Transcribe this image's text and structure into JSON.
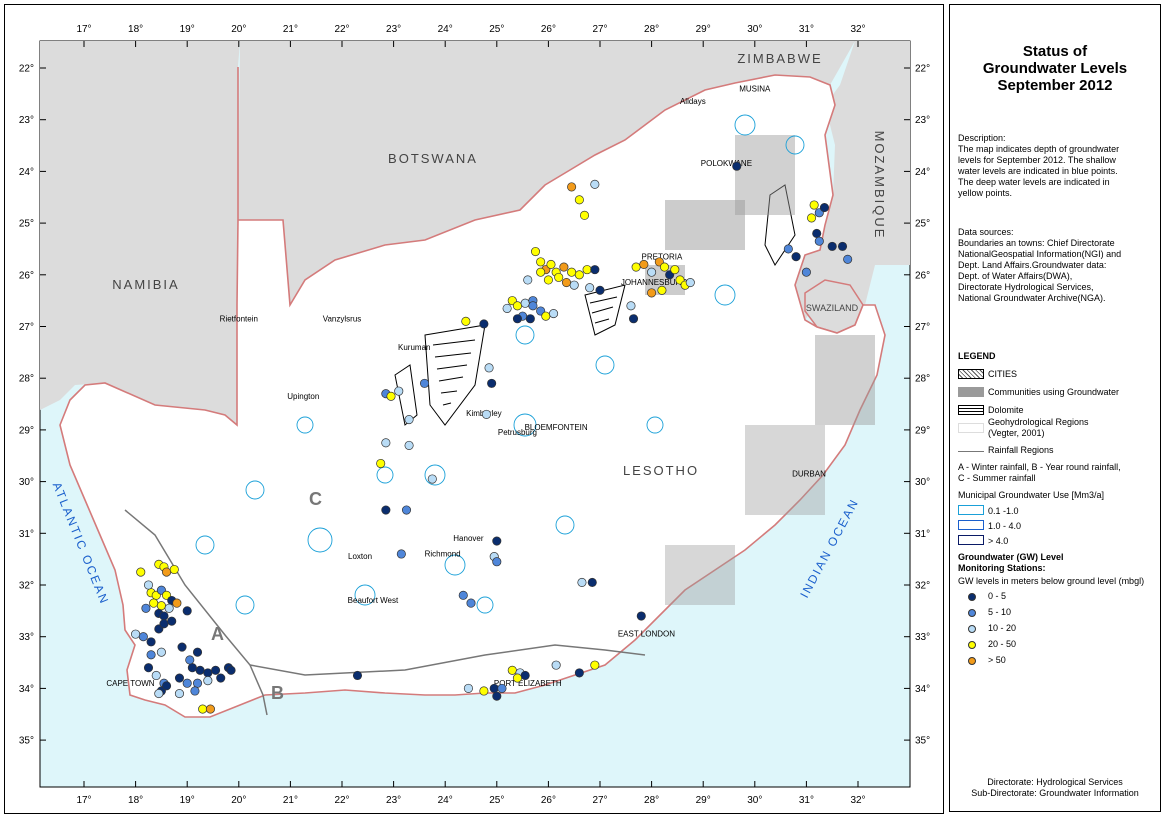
{
  "map": {
    "top_lon_ticks": [
      "17°",
      "18°",
      "19°",
      "20°",
      "21°",
      "22°",
      "23°",
      "24°",
      "25°",
      "26°",
      "27°",
      "28°",
      "29°",
      "30°",
      "31°",
      "32°"
    ],
    "bottom_lon_ticks": [
      "17°",
      "18°",
      "19°",
      "20°",
      "21°",
      "22°",
      "23°",
      "24°",
      "25°",
      "26°",
      "27°",
      "28°",
      "29°",
      "30°",
      "31°",
      "32°"
    ],
    "left_lat_ticks": [
      "22°",
      "23°",
      "24°",
      "25°",
      "26°",
      "27°",
      "28°",
      "29°",
      "30°",
      "31°",
      "32°",
      "33°",
      "34°",
      "35°"
    ],
    "right_lat_ticks": [
      "22°",
      "23°",
      "24°",
      "25°",
      "26°",
      "27°",
      "28°",
      "29°",
      "30°",
      "31°",
      "32°",
      "33°",
      "34°",
      "35°"
    ],
    "countries": {
      "botswana": "BOTSWANA",
      "namibia": "NAMIBIA",
      "zimbabwe": "ZIMBABWE",
      "mozambique": "MOZAMBIQUE",
      "lesotho": "LESOTHO",
      "swaziland": "SWAZILAND"
    },
    "oceans": {
      "atlantic": "ATLANTIC OCEAN",
      "indian": "INDIAN OCEAN"
    },
    "regions": {
      "a": "A",
      "b": "B",
      "c": "C"
    },
    "towns": [
      {
        "name": "Alldays",
        "lon": 28.8,
        "lat": -22.7,
        "bold": false
      },
      {
        "name": "MUSINA",
        "lon": 30.0,
        "lat": -22.45,
        "bold": false
      },
      {
        "name": "POLOKWANE",
        "lon": 29.45,
        "lat": -23.9,
        "bold": false
      },
      {
        "name": "PRETORIA",
        "lon": 28.2,
        "lat": -25.7,
        "bold": false
      },
      {
        "name": "JOHANNESBURG",
        "lon": 28.05,
        "lat": -26.2,
        "bold": false
      },
      {
        "name": "Rietfontein",
        "lon": 20.0,
        "lat": -26.9,
        "bold": false
      },
      {
        "name": "Vanzylsrus",
        "lon": 22.0,
        "lat": -26.9,
        "bold": false
      },
      {
        "name": "Kuruman",
        "lon": 23.4,
        "lat": -27.45,
        "bold": false
      },
      {
        "name": "Upington",
        "lon": 21.25,
        "lat": -28.4,
        "bold": false
      },
      {
        "name": "Kimberley",
        "lon": 24.75,
        "lat": -28.73,
        "bold": false
      },
      {
        "name": "Petrusburg",
        "lon": 25.4,
        "lat": -29.1,
        "bold": false
      },
      {
        "name": "BLOEMFONTEIN",
        "lon": 26.15,
        "lat": -29.0,
        "bold": false
      },
      {
        "name": "DURBAN",
        "lon": 31.05,
        "lat": -29.9,
        "bold": false
      },
      {
        "name": "Hanover",
        "lon": 24.45,
        "lat": -31.15,
        "bold": false
      },
      {
        "name": "Loxton",
        "lon": 22.35,
        "lat": -31.5,
        "bold": false
      },
      {
        "name": "Richmond",
        "lon": 23.95,
        "lat": -31.45,
        "bold": false
      },
      {
        "name": "Beaufort West",
        "lon": 22.6,
        "lat": -32.35,
        "bold": false
      },
      {
        "name": "EAST LONDON",
        "lon": 27.9,
        "lat": -33.0,
        "bold": false
      },
      {
        "name": "CAPE TOWN",
        "lon": 17.9,
        "lat": -33.95,
        "bold": false
      },
      {
        "name": "PORT ELIZABETH",
        "lon": 25.6,
        "lat": -33.95,
        "bold": false
      }
    ],
    "station_colors": {
      "c0_5": "#0a2d6e",
      "c5_10": "#4f86d9",
      "c10_20": "#b9dcf6",
      "c20_50": "#ffff00",
      "c50": "#f29b1a"
    },
    "stations": [
      {
        "lon": 26.45,
        "lat": -24.3,
        "c": "c50"
      },
      {
        "lon": 26.6,
        "lat": -24.55,
        "c": "c20_50"
      },
      {
        "lon": 26.9,
        "lat": -24.25,
        "c": "c10_20"
      },
      {
        "lon": 26.7,
        "lat": -24.85,
        "c": "c20_50"
      },
      {
        "lon": 25.75,
        "lat": -25.55,
        "c": "c20_50"
      },
      {
        "lon": 25.85,
        "lat": -25.75,
        "c": "c20_50"
      },
      {
        "lon": 25.95,
        "lat": -25.9,
        "c": "c50"
      },
      {
        "lon": 26.05,
        "lat": -25.8,
        "c": "c20_50"
      },
      {
        "lon": 26.15,
        "lat": -25.95,
        "c": "c20_50"
      },
      {
        "lon": 26.3,
        "lat": -25.85,
        "c": "c50"
      },
      {
        "lon": 26.45,
        "lat": -25.95,
        "c": "c20_50"
      },
      {
        "lon": 26.6,
        "lat": -26.0,
        "c": "c20_50"
      },
      {
        "lon": 26.75,
        "lat": -25.9,
        "c": "c20_50"
      },
      {
        "lon": 25.85,
        "lat": -25.95,
        "c": "c20_50"
      },
      {
        "lon": 26.0,
        "lat": -26.1,
        "c": "c20_50"
      },
      {
        "lon": 26.2,
        "lat": -26.05,
        "c": "c20_50"
      },
      {
        "lon": 26.5,
        "lat": -26.2,
        "c": "c10_20"
      },
      {
        "lon": 26.9,
        "lat": -25.9,
        "c": "c0_5"
      },
      {
        "lon": 26.35,
        "lat": -26.15,
        "c": "c50"
      },
      {
        "lon": 25.6,
        "lat": -26.1,
        "c": "c10_20"
      },
      {
        "lon": 26.8,
        "lat": -26.25,
        "c": "c10_20"
      },
      {
        "lon": 27.0,
        "lat": -26.3,
        "c": "c0_5"
      },
      {
        "lon": 25.3,
        "lat": -26.5,
        "c": "c20_50"
      },
      {
        "lon": 25.4,
        "lat": -26.6,
        "c": "c20_50"
      },
      {
        "lon": 25.55,
        "lat": -26.55,
        "c": "c10_20"
      },
      {
        "lon": 25.7,
        "lat": -26.5,
        "c": "c5_10"
      },
      {
        "lon": 25.85,
        "lat": -26.7,
        "c": "c5_10"
      },
      {
        "lon": 25.5,
        "lat": -26.8,
        "c": "c5_10"
      },
      {
        "lon": 25.65,
        "lat": -26.85,
        "c": "c0_5"
      },
      {
        "lon": 25.95,
        "lat": -26.8,
        "c": "c20_50"
      },
      {
        "lon": 26.1,
        "lat": -26.75,
        "c": "c10_20"
      },
      {
        "lon": 25.4,
        "lat": -26.85,
        "c": "c0_5"
      },
      {
        "lon": 25.7,
        "lat": -26.6,
        "c": "c5_10"
      },
      {
        "lon": 25.2,
        "lat": -26.65,
        "c": "c10_20"
      },
      {
        "lon": 24.4,
        "lat": -26.9,
        "c": "c20_50"
      },
      {
        "lon": 24.75,
        "lat": -26.95,
        "c": "c0_5"
      },
      {
        "lon": 27.7,
        "lat": -25.85,
        "c": "c20_50"
      },
      {
        "lon": 27.85,
        "lat": -25.8,
        "c": "c50"
      },
      {
        "lon": 28.0,
        "lat": -25.95,
        "c": "c10_20"
      },
      {
        "lon": 28.15,
        "lat": -25.75,
        "c": "c50"
      },
      {
        "lon": 28.25,
        "lat": -25.85,
        "c": "c20_50"
      },
      {
        "lon": 28.35,
        "lat": -26.0,
        "c": "c0_5"
      },
      {
        "lon": 28.45,
        "lat": -25.9,
        "c": "c20_50"
      },
      {
        "lon": 28.55,
        "lat": -26.1,
        "c": "c20_50"
      },
      {
        "lon": 28.65,
        "lat": -26.2,
        "c": "c20_50"
      },
      {
        "lon": 28.75,
        "lat": -26.15,
        "c": "c10_20"
      },
      {
        "lon": 28.0,
        "lat": -26.35,
        "c": "c50"
      },
      {
        "lon": 28.2,
        "lat": -26.3,
        "c": "c20_50"
      },
      {
        "lon": 27.6,
        "lat": -26.6,
        "c": "c10_20"
      },
      {
        "lon": 27.65,
        "lat": -26.85,
        "c": "c0_5"
      },
      {
        "lon": 29.65,
        "lat": -23.9,
        "c": "c0_5"
      },
      {
        "lon": 30.65,
        "lat": -25.5,
        "c": "c5_10"
      },
      {
        "lon": 30.8,
        "lat": -25.65,
        "c": "c0_5"
      },
      {
        "lon": 31.0,
        "lat": -25.95,
        "c": "c5_10"
      },
      {
        "lon": 31.15,
        "lat": -24.65,
        "c": "c20_50"
      },
      {
        "lon": 31.25,
        "lat": -24.8,
        "c": "c5_10"
      },
      {
        "lon": 31.35,
        "lat": -24.7,
        "c": "c0_5"
      },
      {
        "lon": 31.1,
        "lat": -24.9,
        "c": "c20_50"
      },
      {
        "lon": 31.2,
        "lat": -25.2,
        "c": "c0_5"
      },
      {
        "lon": 31.25,
        "lat": -25.35,
        "c": "c5_10"
      },
      {
        "lon": 31.5,
        "lat": -25.45,
        "c": "c0_5"
      },
      {
        "lon": 31.7,
        "lat": -25.45,
        "c": "c0_5"
      },
      {
        "lon": 31.8,
        "lat": -25.7,
        "c": "c5_10"
      },
      {
        "lon": 22.85,
        "lat": -28.3,
        "c": "c5_10"
      },
      {
        "lon": 22.95,
        "lat": -28.35,
        "c": "c20_50"
      },
      {
        "lon": 23.1,
        "lat": -28.25,
        "c": "c10_20"
      },
      {
        "lon": 23.6,
        "lat": -28.1,
        "c": "c5_10"
      },
      {
        "lon": 23.3,
        "lat": -28.8,
        "c": "c10_20"
      },
      {
        "lon": 24.85,
        "lat": -27.8,
        "c": "c10_20"
      },
      {
        "lon": 24.9,
        "lat": -28.1,
        "c": "c0_5"
      },
      {
        "lon": 24.8,
        "lat": -28.7,
        "c": "c10_20"
      },
      {
        "lon": 23.3,
        "lat": -29.3,
        "c": "c10_20"
      },
      {
        "lon": 22.85,
        "lat": -29.25,
        "c": "c10_20"
      },
      {
        "lon": 22.75,
        "lat": -29.65,
        "c": "c20_50"
      },
      {
        "lon": 23.75,
        "lat": -29.95,
        "c": "c10_20"
      },
      {
        "lon": 22.85,
        "lat": -30.55,
        "c": "c0_5"
      },
      {
        "lon": 23.25,
        "lat": -30.55,
        "c": "c5_10"
      },
      {
        "lon": 25.0,
        "lat": -31.15,
        "c": "c0_5"
      },
      {
        "lon": 24.95,
        "lat": -31.45,
        "c": "c10_20"
      },
      {
        "lon": 25.0,
        "lat": -31.55,
        "c": "c5_10"
      },
      {
        "lon": 23.15,
        "lat": -31.4,
        "c": "c5_10"
      },
      {
        "lon": 24.35,
        "lat": -32.2,
        "c": "c5_10"
      },
      {
        "lon": 24.5,
        "lat": -32.35,
        "c": "c5_10"
      },
      {
        "lon": 26.65,
        "lat": -31.95,
        "c": "c10_20"
      },
      {
        "lon": 26.85,
        "lat": -31.95,
        "c": "c0_5"
      },
      {
        "lon": 27.8,
        "lat": -32.6,
        "c": "c0_5"
      },
      {
        "lon": 18.45,
        "lat": -31.6,
        "c": "c20_50"
      },
      {
        "lon": 18.55,
        "lat": -31.65,
        "c": "c20_50"
      },
      {
        "lon": 18.6,
        "lat": -31.75,
        "c": "c50"
      },
      {
        "lon": 18.75,
        "lat": -31.7,
        "c": "c20_50"
      },
      {
        "lon": 18.3,
        "lat": -32.15,
        "c": "c20_50"
      },
      {
        "lon": 18.4,
        "lat": -32.2,
        "c": "c20_50"
      },
      {
        "lon": 18.5,
        "lat": -32.1,
        "c": "c5_10"
      },
      {
        "lon": 18.6,
        "lat": -32.2,
        "c": "c20_50"
      },
      {
        "lon": 18.7,
        "lat": -32.3,
        "c": "c0_5"
      },
      {
        "lon": 18.35,
        "lat": -32.35,
        "c": "c20_50"
      },
      {
        "lon": 18.5,
        "lat": -32.4,
        "c": "c20_50"
      },
      {
        "lon": 18.65,
        "lat": -32.45,
        "c": "c10_20"
      },
      {
        "lon": 18.2,
        "lat": -32.45,
        "c": "c5_10"
      },
      {
        "lon": 18.8,
        "lat": -32.35,
        "c": "c50"
      },
      {
        "lon": 18.45,
        "lat": -32.55,
        "c": "c0_5"
      },
      {
        "lon": 18.1,
        "lat": -31.75,
        "c": "c20_50"
      },
      {
        "lon": 18.25,
        "lat": -32.0,
        "c": "c10_20"
      },
      {
        "lon": 18.55,
        "lat": -32.6,
        "c": "c0_5"
      },
      {
        "lon": 18.0,
        "lat": -32.95,
        "c": "c10_20"
      },
      {
        "lon": 18.15,
        "lat": -33.0,
        "c": "c5_10"
      },
      {
        "lon": 18.3,
        "lat": -33.1,
        "c": "c0_5"
      },
      {
        "lon": 18.45,
        "lat": -32.85,
        "c": "c0_5"
      },
      {
        "lon": 18.55,
        "lat": -32.75,
        "c": "c0_5"
      },
      {
        "lon": 18.7,
        "lat": -32.7,
        "c": "c0_5"
      },
      {
        "lon": 18.3,
        "lat": -33.35,
        "c": "c5_10"
      },
      {
        "lon": 18.5,
        "lat": -33.3,
        "c": "c10_20"
      },
      {
        "lon": 19.0,
        "lat": -32.5,
        "c": "c0_5"
      },
      {
        "lon": 18.25,
        "lat": -33.6,
        "c": "c0_5"
      },
      {
        "lon": 18.4,
        "lat": -33.75,
        "c": "c10_20"
      },
      {
        "lon": 18.55,
        "lat": -33.9,
        "c": "c5_10"
      },
      {
        "lon": 18.5,
        "lat": -34.05,
        "c": "c0_5"
      },
      {
        "lon": 18.6,
        "lat": -33.95,
        "c": "c0_5"
      },
      {
        "lon": 18.45,
        "lat": -34.1,
        "c": "c10_20"
      },
      {
        "lon": 18.85,
        "lat": -33.8,
        "c": "c0_5"
      },
      {
        "lon": 19.0,
        "lat": -33.9,
        "c": "c5_10"
      },
      {
        "lon": 19.1,
        "lat": -33.6,
        "c": "c0_5"
      },
      {
        "lon": 19.25,
        "lat": -33.65,
        "c": "c0_5"
      },
      {
        "lon": 19.4,
        "lat": -33.7,
        "c": "c0_5"
      },
      {
        "lon": 19.55,
        "lat": -33.65,
        "c": "c0_5"
      },
      {
        "lon": 19.2,
        "lat": -33.9,
        "c": "c5_10"
      },
      {
        "lon": 19.4,
        "lat": -33.85,
        "c": "c10_20"
      },
      {
        "lon": 19.65,
        "lat": -33.8,
        "c": "c0_5"
      },
      {
        "lon": 19.8,
        "lat": -33.6,
        "c": "c0_5"
      },
      {
        "lon": 19.85,
        "lat": -33.65,
        "c": "c0_5"
      },
      {
        "lon": 18.9,
        "lat": -33.2,
        "c": "c0_5"
      },
      {
        "lon": 19.2,
        "lat": -33.3,
        "c": "c0_5"
      },
      {
        "lon": 19.05,
        "lat": -33.45,
        "c": "c5_10"
      },
      {
        "lon": 19.3,
        "lat": -34.4,
        "c": "c20_50"
      },
      {
        "lon": 19.45,
        "lat": -34.4,
        "c": "c50"
      },
      {
        "lon": 18.85,
        "lat": -34.1,
        "c": "c10_20"
      },
      {
        "lon": 19.15,
        "lat": -34.05,
        "c": "c5_10"
      },
      {
        "lon": 22.3,
        "lat": -33.75,
        "c": "c0_5"
      },
      {
        "lon": 24.45,
        "lat": -34.0,
        "c": "c10_20"
      },
      {
        "lon": 24.75,
        "lat": -34.05,
        "c": "c20_50"
      },
      {
        "lon": 24.95,
        "lat": -34.0,
        "c": "c0_5"
      },
      {
        "lon": 25.0,
        "lat": -34.15,
        "c": "c0_5"
      },
      {
        "lon": 25.1,
        "lat": -34.0,
        "c": "c5_10"
      },
      {
        "lon": 25.3,
        "lat": -33.65,
        "c": "c20_50"
      },
      {
        "lon": 25.45,
        "lat": -33.7,
        "c": "c10_20"
      },
      {
        "lon": 25.55,
        "lat": -33.75,
        "c": "c0_5"
      },
      {
        "lon": 25.4,
        "lat": -33.8,
        "c": "c20_50"
      },
      {
        "lon": 26.15,
        "lat": -33.55,
        "c": "c10_20"
      },
      {
        "lon": 26.6,
        "lat": -33.7,
        "c": "c0_5"
      },
      {
        "lon": 26.9,
        "lat": -33.55,
        "c": "c20_50"
      }
    ]
  },
  "legend": {
    "title": [
      "Status of",
      "Groundwater Levels",
      "September 2012"
    ],
    "description_lines": [
      "Description:",
      "The map indicates depth of groundwater",
      "levels for September 2012. The shallow",
      "water levels are indicated in blue points.",
      "The deep water levels are indicated in",
      "yellow points."
    ],
    "sources_lines": [
      "Data sources:",
      "Boundaries an towns: Chief Directorate",
      "NationalGeospatial Information(NGI) and",
      "Dept. Land Affairs.Groundwater data:",
      "Dept. of Water Affairs(DWA),",
      "Directorate Hydrological Services,",
      "National Groundwater Archive(NGA)."
    ],
    "heading": "LEGEND",
    "cities": "CITIES",
    "communities": "Communities using Groundwater",
    "dolomite": "Dolomite",
    "geohydro": [
      "Geohydrological Regions",
      "(Vegter, 2001)"
    ],
    "rainfall": "Rainfall Regions",
    "rainfall_desc": [
      "A - Winter rainfall, B - Year round rainfall,",
      "C - Summer rainfall"
    ],
    "mgu_title": "Municipal Groundwater Use [Mm3/a]",
    "mgu": [
      "0.1 -1.0",
      "1.0 - 4.0",
      "> 4.0"
    ],
    "gw_heading": [
      "Groundwater (GW) Level",
      "Monitoring Stations:"
    ],
    "gw_sub": "GW levels in meters below ground level (mbgl)",
    "gw_classes": [
      "0 - 5",
      "5 - 10",
      "10 - 20",
      "20 - 50",
      "> 50"
    ],
    "footer": [
      "Directorate: Hydrological Services",
      "Sub-Directorate: Groundwater Information"
    ]
  }
}
